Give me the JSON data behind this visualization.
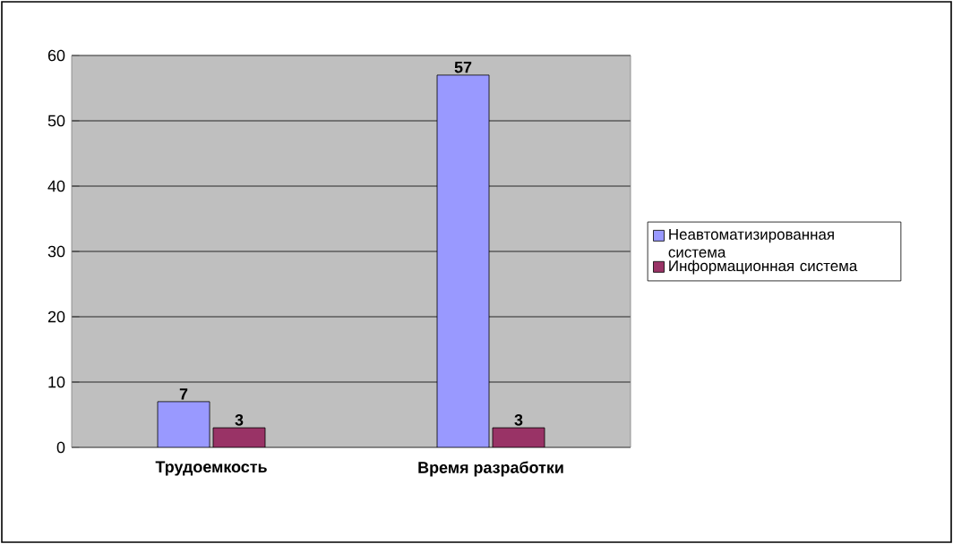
{
  "chart_data": {
    "type": "bar",
    "categories": [
      "Трудоемкость",
      "Время разработки"
    ],
    "series": [
      {
        "name": "Неавтоматизированная система",
        "color": "#9999ff",
        "values": [
          7,
          57
        ]
      },
      {
        "name": "Информационная система",
        "color": "#993366",
        "values": [
          3,
          3
        ]
      }
    ],
    "ylim": [
      0,
      60
    ],
    "yticks": [
      0,
      10,
      20,
      30,
      40,
      50,
      60
    ],
    "grid": "y",
    "legend": "right",
    "data_labels": true
  }
}
